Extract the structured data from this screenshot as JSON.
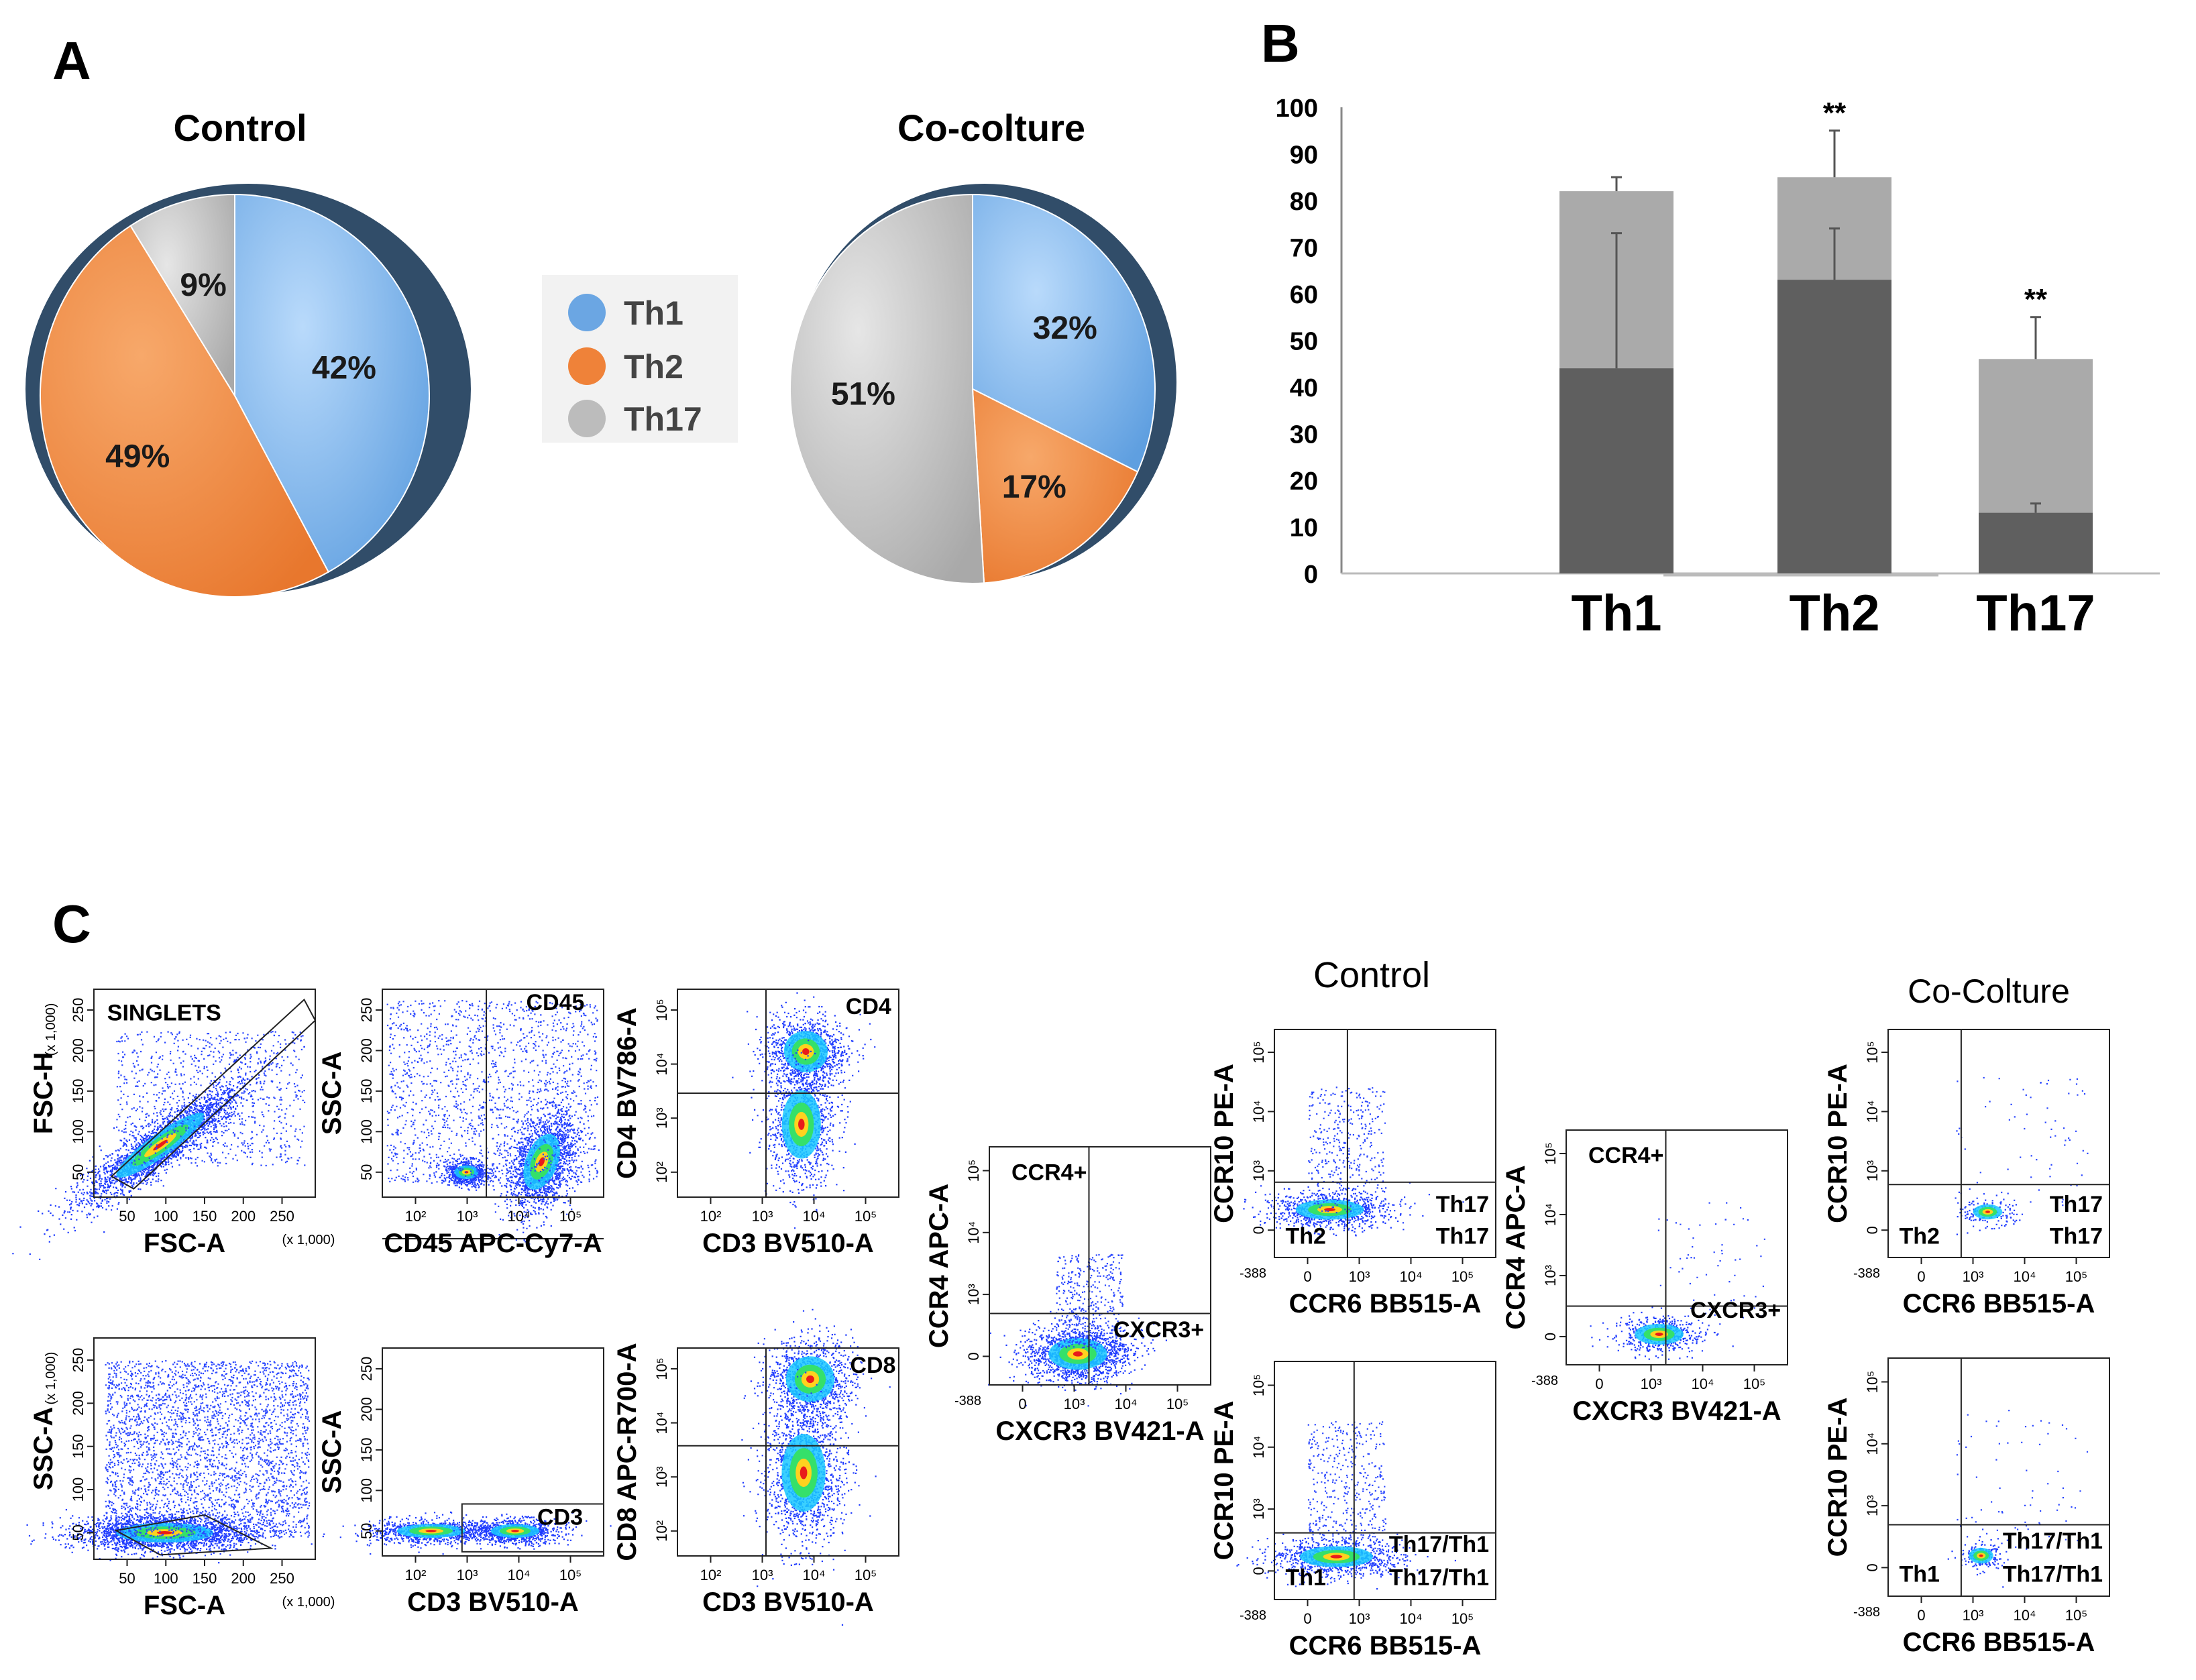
{
  "panels": {
    "a": "A",
    "b": "B",
    "c": "C"
  },
  "chart_data": [
    {
      "type": "pie",
      "title": "Control",
      "slices": [
        {
          "label": "Th1",
          "value": 42,
          "text": "42%"
        },
        {
          "label": "Th2",
          "value": 49,
          "text": "49%"
        },
        {
          "label": "Th17",
          "value": 9,
          "text": "9%"
        }
      ]
    },
    {
      "type": "pie",
      "title": "Co-colture",
      "slices": [
        {
          "label": "Th1",
          "value": 32,
          "text": "32%"
        },
        {
          "label": "Th2",
          "value": 17,
          "text": "17%"
        },
        {
          "label": "Th17",
          "value": 51,
          "text": "51%"
        }
      ]
    },
    {
      "type": "bar",
      "categories": [
        "Th1",
        "Th2",
        "Th17"
      ],
      "series": [
        {
          "name": "total",
          "color": "#aaaaaa",
          "values": [
            82,
            85,
            46
          ],
          "error": [
            3,
            10,
            9
          ]
        },
        {
          "name": "inner",
          "color": "#5f5f5f",
          "values": [
            44,
            63,
            13
          ],
          "error": [
            29,
            11,
            2
          ]
        }
      ],
      "annotations": [
        "",
        "**",
        "**"
      ],
      "yticks": [
        "100",
        "90",
        "80",
        "70",
        "60",
        "50",
        "40",
        "30",
        "20",
        "10",
        "0"
      ],
      "ylim": [
        0,
        100
      ]
    }
  ],
  "legend": [
    {
      "label": "Th1",
      "color": "#6ba6e3"
    },
    {
      "label": "Th2",
      "color": "#ef8239"
    },
    {
      "label": "Th17",
      "color": "#bcbcbc"
    }
  ],
  "flow": {
    "group_control": "Control",
    "group_cocolture": "Co-Colture",
    "plot_singlets": {
      "gate": "SINGLETS",
      "ylabel": "FSC-H",
      "xlabel": "FSC-A",
      "yunit": "(x 1,000)",
      "xunit": "(x 1,000)",
      "xticks": [
        "50",
        "100",
        "150",
        "200",
        "250"
      ],
      "yticks": [
        "250",
        "200",
        "150",
        "100",
        "50"
      ]
    },
    "plot_ssc_fsc": {
      "gate": "",
      "ylabel": "SSC-A",
      "xlabel": "FSC-A",
      "yunit": "(x 1,000)",
      "xunit": "(x 1,000)",
      "xticks": [
        "50",
        "100",
        "150",
        "200",
        "250"
      ],
      "yticks": [
        "250",
        "200",
        "150",
        "100",
        "50"
      ]
    },
    "plot_cd45": {
      "gate": "CD45",
      "ylabel": "SSC-A",
      "xlabel": "CD45 APC-Cy7-A",
      "xticks": [
        "10²",
        "10³",
        "10⁴",
        "10⁵"
      ],
      "yticks": [
        "250",
        "200",
        "150",
        "100",
        "50"
      ]
    },
    "plot_cd3": {
      "gate": "CD3",
      "ylabel": "SSC-A",
      "xlabel": "CD3 BV510-A",
      "xticks": [
        "10²",
        "10³",
        "10⁴",
        "10⁵"
      ],
      "yticks": [
        "250",
        "200",
        "150",
        "100",
        "50"
      ]
    },
    "plot_cd4": {
      "gate": "CD4",
      "ylabel": "CD4 BV786-A",
      "xlabel": "CD3 BV510-A",
      "xticks": [
        "10²",
        "10³",
        "10⁴",
        "10⁵"
      ],
      "yticks": [
        "10⁵",
        "10⁴",
        "10³",
        "10²"
      ]
    },
    "plot_cd8": {
      "gate": "CD8",
      "ylabel": "CD8 APC-R700-A",
      "xlabel": "CD3 BV510-A",
      "xticks": [
        "10²",
        "10³",
        "10⁴",
        "10⁵"
      ],
      "yticks": [
        "10⁵",
        "10⁴",
        "10³",
        "10²"
      ]
    },
    "plot_ccr4_ctrl": {
      "ylabel": "CCR4 APC-A",
      "xlabel": "CXCR3 BV421-A",
      "q_top": "CCR4+",
      "q_right": "CXCR3+",
      "xticks": [
        "0",
        "10³",
        "10⁴",
        "10⁵"
      ],
      "yticks": [
        "10⁵",
        "10⁴",
        "10³",
        "0"
      ],
      "min": "-388"
    },
    "plot_ccr4_cocult": {
      "ylabel": "CCR4 APC-A",
      "xlabel": "CXCR3 BV421-A",
      "q_top": "CCR4+",
      "q_right": "CXCR3+",
      "xticks": [
        "0",
        "10³",
        "10⁴",
        "10⁵"
      ],
      "yticks": [
        "10⁵",
        "10⁴",
        "10³",
        "0"
      ],
      "min": "-388"
    },
    "plot_ccr10_ctrl_a": {
      "ylabel": "CCR10 PE-A",
      "xlabel": "CCR6 BB515-A",
      "q_left": "Th2",
      "q_right": "Th17",
      "xticks": [
        "0",
        "10³",
        "10⁴",
        "10⁵"
      ],
      "yticks": [
        "10⁵",
        "10⁴",
        "10³",
        "0"
      ],
      "min": "-388"
    },
    "plot_ccr10_ctrl_b": {
      "ylabel": "CCR10 PE-A",
      "xlabel": "CCR6 BB515-A",
      "q_left": "Th1",
      "q_right": "Th17/Th1",
      "xticks": [
        "0",
        "10³",
        "10⁴",
        "10⁵"
      ],
      "yticks": [
        "10⁵",
        "10⁴",
        "10³",
        "0"
      ],
      "min": "-388"
    },
    "plot_ccr10_coc_a": {
      "ylabel": "CCR10 PE-A",
      "xlabel": "CCR6 BB515-A",
      "q_left": "Th2",
      "q_right": "Th17",
      "xticks": [
        "0",
        "10³",
        "10⁴",
        "10⁵"
      ],
      "yticks": [
        "10⁵",
        "10⁴",
        "10³",
        "0"
      ],
      "min": "-388"
    },
    "plot_ccr10_coc_b": {
      "ylabel": "CCR10 PE-A",
      "xlabel": "CCR6 BB515-A",
      "q_left": "Th1",
      "q_right": "Th17/Th1",
      "xticks": [
        "0",
        "10³",
        "10⁴",
        "10⁵"
      ],
      "yticks": [
        "10⁵",
        "10⁴",
        "10³",
        "0"
      ],
      "min": "-388"
    }
  }
}
